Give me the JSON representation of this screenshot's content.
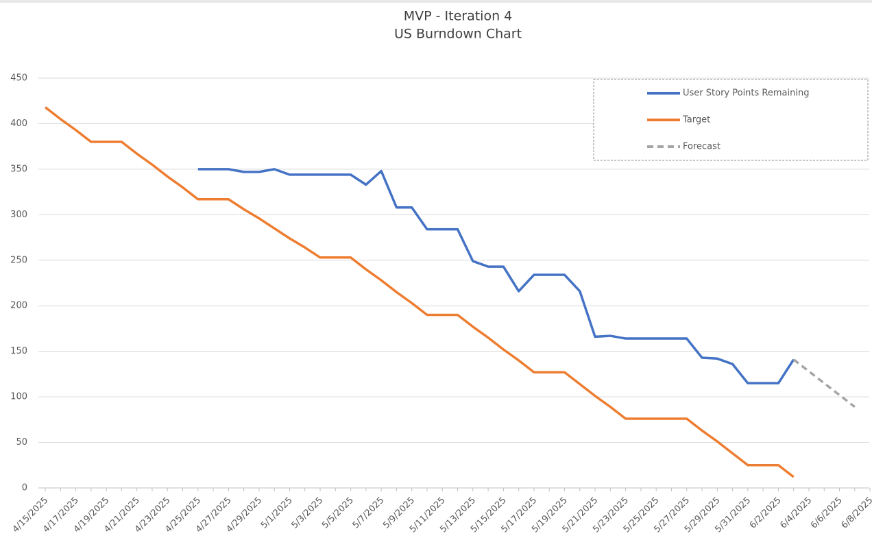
{
  "chart_data": {
    "type": "line",
    "title": "MVP - Iteration 4",
    "subtitle": "US Burndown Chart",
    "categories": [
      "4/15/2025",
      null,
      "4/17/2025",
      null,
      "4/19/2025",
      null,
      "4/21/2025",
      null,
      "4/23/2025",
      null,
      "4/25/2025",
      null,
      "4/27/2025",
      null,
      "4/29/2025",
      null,
      "5/1/2025",
      null,
      "5/3/2025",
      null,
      "5/5/2025",
      null,
      "5/7/2025",
      null,
      "5/9/2025",
      null,
      "5/11/2025",
      null,
      "5/13/2025",
      null,
      "5/15/2025",
      null,
      "5/17/2025",
      null,
      "5/19/2025",
      null,
      "5/21/2025",
      null,
      "5/23/2025",
      null,
      "5/25/2025",
      null,
      "5/27/2025",
      null,
      "5/29/2025",
      null,
      "5/31/2025",
      null,
      "6/2/2025",
      null,
      "6/4/2025",
      null,
      "6/6/2025",
      null,
      "6/8/2025"
    ],
    "series": [
      {
        "name": "User Story Points Remaining",
        "color": "#4472c4",
        "dashed": false,
        "values": [
          null,
          null,
          null,
          null,
          null,
          null,
          null,
          null,
          null,
          null,
          350,
          350,
          350,
          347,
          347,
          350,
          344,
          344,
          344,
          344,
          344,
          333,
          348,
          308,
          308,
          284,
          284,
          284,
          249,
          243,
          243,
          216,
          234,
          234,
          234,
          216,
          166,
          167,
          164,
          164,
          164,
          164,
          164,
          143,
          142,
          136,
          115,
          115,
          115,
          141,
          null,
          null,
          null,
          null,
          null
        ]
      },
      {
        "name": "Target",
        "color": "#ed7d31",
        "dashed": false,
        "values": [
          418,
          405,
          393,
          380,
          380,
          380,
          367,
          355,
          342,
          330,
          317,
          317,
          317,
          306,
          296,
          285,
          274,
          264,
          253,
          253,
          253,
          240,
          228,
          215,
          203,
          190,
          190,
          190,
          177,
          165,
          152,
          140,
          127,
          127,
          127,
          114,
          101,
          89,
          76,
          76,
          76,
          76,
          76,
          63,
          51,
          38,
          25,
          25,
          25,
          12,
          null,
          null,
          null,
          null,
          null
        ]
      },
      {
        "name": "Forecast",
        "color": "#a5a5a5",
        "dashed": true,
        "values": [
          null,
          null,
          null,
          null,
          null,
          null,
          null,
          null,
          null,
          null,
          null,
          null,
          null,
          null,
          null,
          null,
          null,
          null,
          null,
          null,
          null,
          null,
          null,
          null,
          null,
          null,
          null,
          null,
          null,
          null,
          null,
          null,
          null,
          null,
          null,
          null,
          null,
          null,
          null,
          null,
          null,
          null,
          null,
          null,
          null,
          null,
          null,
          null,
          null,
          141,
          128,
          115,
          102,
          89,
          null
        ]
      }
    ],
    "ylim": [
      0,
      450
    ],
    "yticks": [
      0,
      50,
      100,
      150,
      200,
      250,
      300,
      350,
      400,
      450
    ],
    "grid": true,
    "legend": "top-right"
  }
}
